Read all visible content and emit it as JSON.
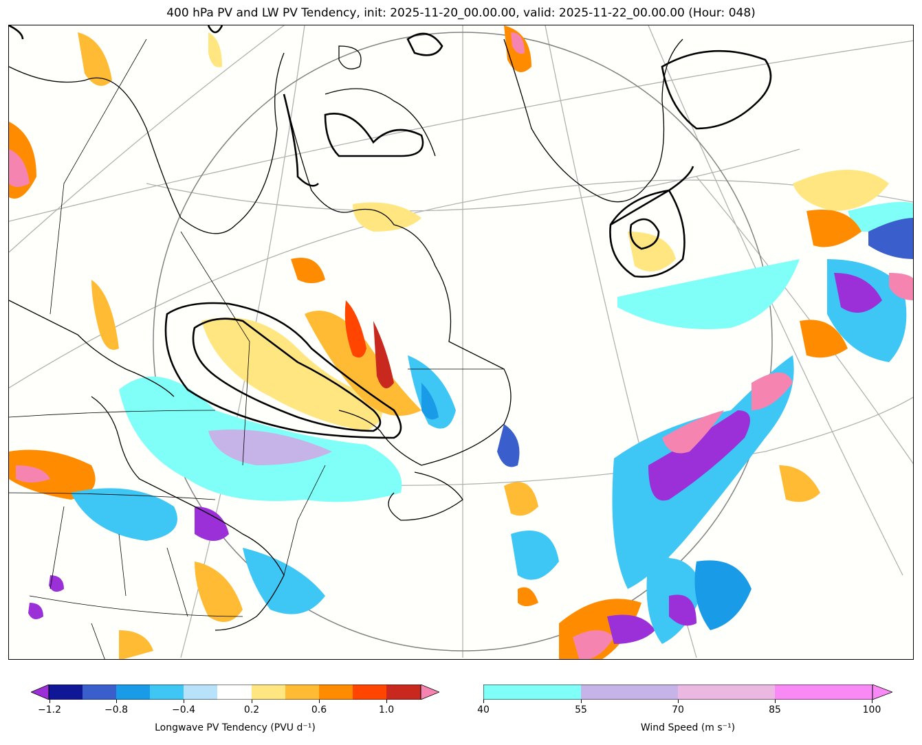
{
  "title": "400 hPa PV and LW PV Tendency, init: 2025-11-20_00.00.00, valid: 2025-11-22_00.00.00 (Hour: 048)",
  "colorbar_pv": {
    "label": "Longwave PV Tendency (PVU d⁻¹)",
    "ticks": [
      "−1.2",
      "−0.8",
      "−0.4",
      "0.2",
      "0.6",
      "1.0"
    ],
    "colors": [
      "#0f1796",
      "#3a5fcd",
      "#1a9be8",
      "#3ec6f5",
      "#b8e2fa",
      "#ffffff",
      "#ffe680",
      "#ffbb33",
      "#ff8c00",
      "#ff4500",
      "#c8281e"
    ],
    "under_color": "#9b30d9",
    "over_color": "#f585b0"
  },
  "colorbar_wind": {
    "label": "Wind Speed (m s⁻¹)",
    "ticks": [
      "40",
      "55",
      "70",
      "85",
      "100"
    ],
    "colors": [
      "#7ffff8",
      "#c6b3e8",
      "#eab8e0",
      "#f98af5"
    ],
    "over_color": "#f98af5"
  },
  "map": {
    "background": "#fffffc"
  }
}
